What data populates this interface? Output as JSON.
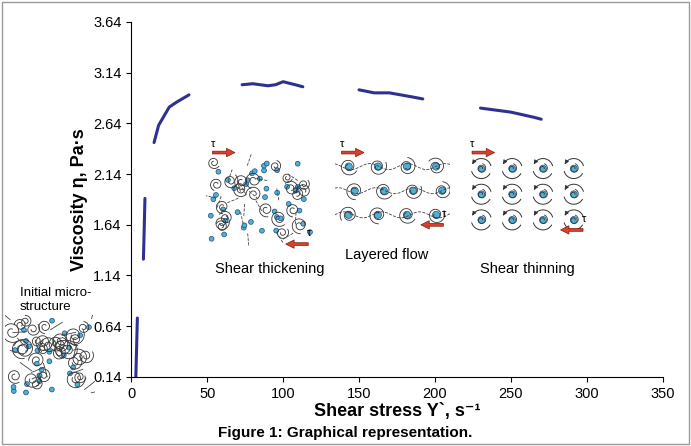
{
  "chart_data": {
    "type": "line",
    "caption": "Figure 1: Graphical representation.",
    "x_label": "Shear stress Y`, s⁻¹",
    "y_label": "Viscosity η, Pa·s",
    "x": [
      3,
      4,
      6,
      8,
      9,
      12,
      15,
      18,
      25,
      30,
      38,
      55,
      73,
      80,
      90,
      95,
      100,
      108,
      113,
      130,
      150,
      160,
      170,
      185,
      192,
      210,
      230,
      250,
      265,
      270
    ],
    "values": [
      0.14,
      0.72,
      null,
      1.3,
      1.9,
      null,
      2.45,
      2.62,
      2.8,
      2.85,
      2.92,
      null,
      3.02,
      3.03,
      3.01,
      3.02,
      3.05,
      3.02,
      3.0,
      null,
      2.97,
      2.94,
      2.94,
      2.9,
      2.88,
      null,
      2.79,
      2.75,
      2.7,
      2.68
    ],
    "color": "#2e3192",
    "xlim": [
      0,
      350
    ],
    "xticks": [
      0,
      50,
      100,
      150,
      200,
      250,
      300,
      350
    ],
    "ylim": [
      0.14,
      3.64
    ],
    "yticks": [
      0.14,
      0.64,
      1.14,
      1.64,
      2.14,
      2.64,
      3.14,
      3.64
    ],
    "grid": false,
    "annotations": [
      "Initial micro-\nstructure",
      "Shear thickening",
      "Layered flow",
      "Shear thinning"
    ],
    "stress_symbol": "τ"
  }
}
